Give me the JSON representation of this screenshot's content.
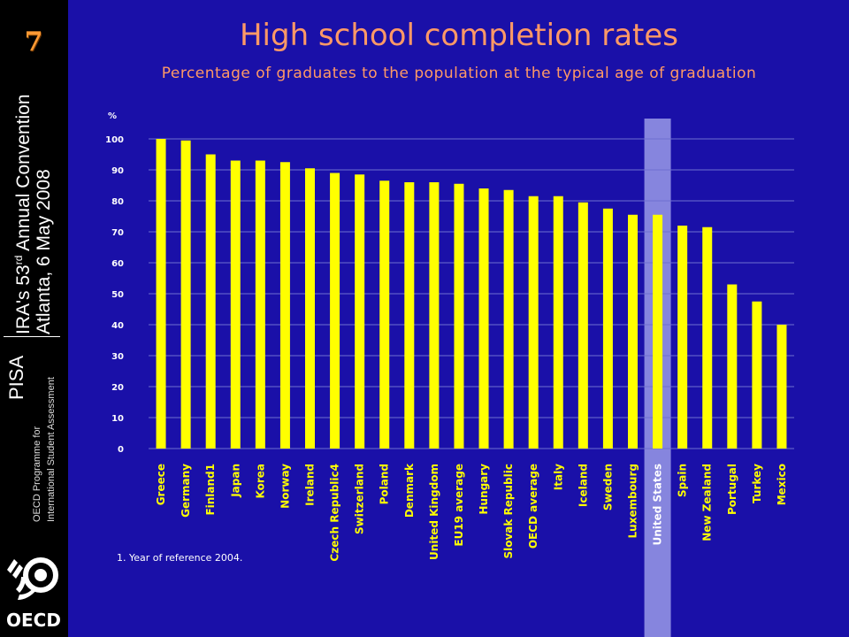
{
  "slide_number": "7",
  "sidebar": {
    "conference_line1_pre": "IRA's 53",
    "conference_line1_sup": "rd",
    "conference_line1_post": " Annual Convention",
    "conference_line2": "Atlanta, 6 May 2008",
    "pisa": "PISA",
    "pisa_sub1": "OECD Programme for",
    "pisa_sub2": "International Student Assessment",
    "logo_text": "OECD"
  },
  "title": "High school completion rates",
  "subtitle": "Percentage of graduates to the population at the typical age of graduation",
  "footnote": "1. Year of reference 2004.",
  "colors": {
    "background": "#1a10a8",
    "bar": "#ffff00",
    "highlight": "#9a9ae8",
    "title": "#ff9966"
  },
  "chart_data": {
    "type": "bar",
    "ylabel": "%",
    "ylim": [
      0,
      100
    ],
    "yticks": [
      0,
      10,
      20,
      30,
      40,
      50,
      60,
      70,
      80,
      90,
      100
    ],
    "grid": true,
    "highlight_category": "United States",
    "categories": [
      "Greece",
      "Germany",
      "Finland1",
      "Japan",
      "Korea",
      "Norway",
      "Ireland",
      "Czech Republic4",
      "Switzerland",
      "Poland",
      "Denmark",
      "United Kingdom",
      "EU19 average",
      "Hungary",
      "Slovak Republic",
      "OECD average",
      "Italy",
      "Iceland",
      "Sweden",
      "Luxembourg",
      "United States",
      "Spain",
      "New Zealand",
      "Portugal",
      "Turkey",
      "Mexico"
    ],
    "values": [
      100,
      99.5,
      95,
      93,
      93,
      92.5,
      90.5,
      89,
      88.5,
      86.5,
      86,
      86,
      85.5,
      84,
      83.5,
      81.5,
      81.5,
      79.5,
      77.5,
      75.5,
      75.5,
      72,
      71.5,
      53,
      47.5,
      40
    ]
  }
}
